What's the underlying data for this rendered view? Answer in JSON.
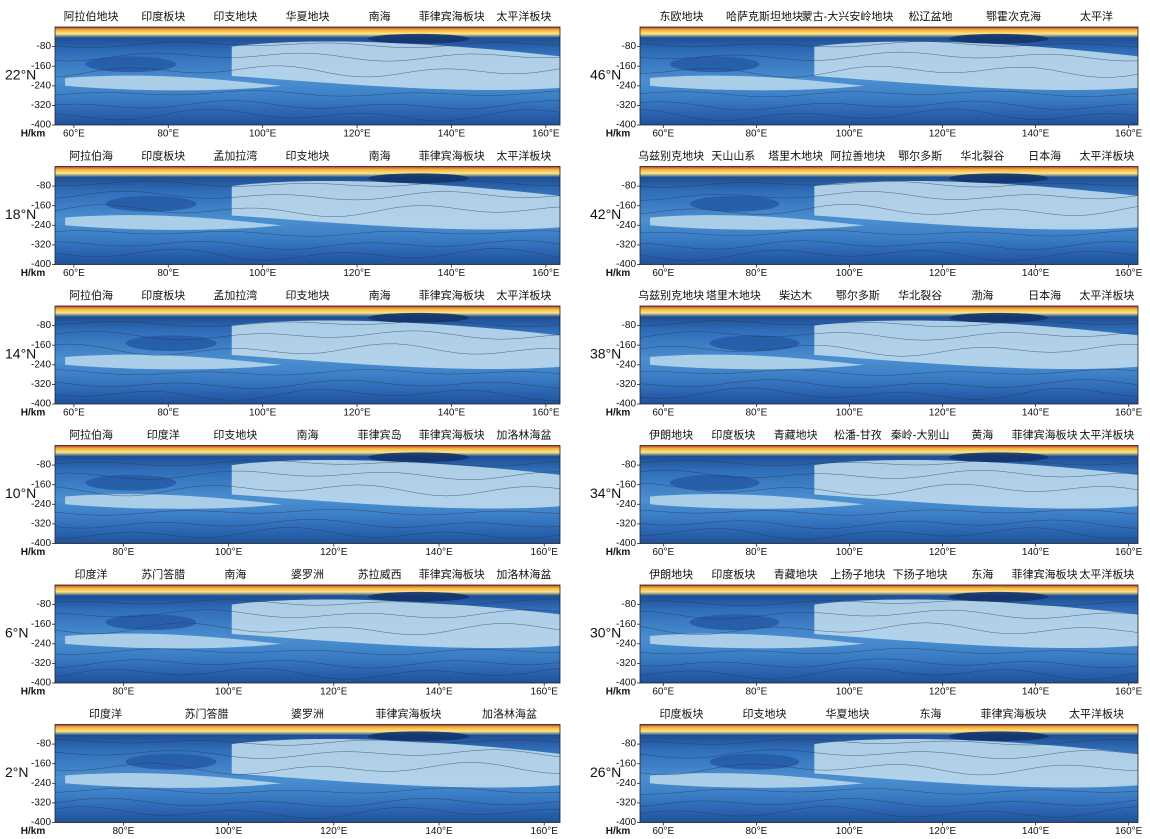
{
  "chart_data": [
    {
      "type": "contour",
      "title": "22°N",
      "ylabel": "H/km",
      "annotations": [
        "阿拉伯地块",
        "印度板块",
        "印支地块",
        "华夏地块",
        "南海",
        "菲律宾海板块",
        "太平洋板块"
      ],
      "xlim": [
        56,
        163
      ],
      "xticks": [
        {
          "value": 60,
          "label": "60°E"
        },
        {
          "value": 80,
          "label": "80°E"
        },
        {
          "value": 100,
          "label": "100°E"
        },
        {
          "value": 120,
          "label": "120°E"
        },
        {
          "value": 140,
          "label": "140°E"
        },
        {
          "value": 160,
          "label": "160°E"
        }
      ],
      "ylim": [
        -400,
        0
      ],
      "yticks": [
        -80,
        -160,
        -240,
        -320,
        -400
      ]
    },
    {
      "type": "contour",
      "title": "18°N",
      "ylabel": "H/km",
      "annotations": [
        "阿拉伯海",
        "印度板块",
        "孟加拉湾",
        "印支地块",
        "南海",
        "菲律宾海板块",
        "太平洋板块"
      ],
      "xlim": [
        56,
        163
      ],
      "xticks": [
        {
          "value": 60,
          "label": "60°E"
        },
        {
          "value": 80,
          "label": "80°E"
        },
        {
          "value": 100,
          "label": "100°E"
        },
        {
          "value": 120,
          "label": "120°E"
        },
        {
          "value": 140,
          "label": "140°E"
        },
        {
          "value": 160,
          "label": "160°E"
        }
      ],
      "ylim": [
        -400,
        0
      ],
      "yticks": [
        -80,
        -160,
        -240,
        -320,
        -400
      ]
    },
    {
      "type": "contour",
      "title": "14°N",
      "ylabel": "H/km",
      "annotations": [
        "阿拉伯海",
        "印度板块",
        "孟加拉湾",
        "印支地块",
        "南海",
        "菲律宾海板块",
        "太平洋板块"
      ],
      "xlim": [
        56,
        163
      ],
      "xticks": [
        {
          "value": 60,
          "label": "60°E"
        },
        {
          "value": 80,
          "label": "80°E"
        },
        {
          "value": 100,
          "label": "100°E"
        },
        {
          "value": 120,
          "label": "120°E"
        },
        {
          "value": 140,
          "label": "140°E"
        },
        {
          "value": 160,
          "label": "160°E"
        }
      ],
      "ylim": [
        -400,
        0
      ],
      "yticks": [
        -80,
        -160,
        -240,
        -320,
        -400
      ]
    },
    {
      "type": "contour",
      "title": "10°N",
      "ylabel": "H/km",
      "annotations": [
        "阿拉伯海",
        "印度洋",
        "印支地块",
        "南海",
        "菲律宾岛",
        "菲律宾海板块",
        "加洛林海盆"
      ],
      "xlim": [
        67,
        163
      ],
      "xticks": [
        {
          "value": 80,
          "label": "80°E"
        },
        {
          "value": 100,
          "label": "100°E"
        },
        {
          "value": 120,
          "label": "120°E"
        },
        {
          "value": 140,
          "label": "140°E"
        },
        {
          "value": 160,
          "label": "160°E"
        }
      ],
      "ylim": [
        -400,
        0
      ],
      "yticks": [
        -80,
        -160,
        -240,
        -320,
        -400
      ]
    },
    {
      "type": "contour",
      "title": "6°N",
      "ylabel": "H/km",
      "annotations": [
        "印度洋",
        "苏门答腊",
        "南海",
        "婆罗洲",
        "苏拉威西",
        "菲律宾海板块",
        "加洛林海盆"
      ],
      "xlim": [
        67,
        163
      ],
      "xticks": [
        {
          "value": 80,
          "label": "80°E"
        },
        {
          "value": 100,
          "label": "100°E"
        },
        {
          "value": 120,
          "label": "120°E"
        },
        {
          "value": 140,
          "label": "140°E"
        },
        {
          "value": 160,
          "label": "160°E"
        }
      ],
      "ylim": [
        -400,
        0
      ],
      "yticks": [
        -80,
        -160,
        -240,
        -320,
        -400
      ]
    },
    {
      "type": "contour",
      "title": "2°N",
      "ylabel": "H/km",
      "annotations": [
        "印度洋",
        "苏门答腊",
        "婆罗洲",
        "菲律宾海板块",
        "加洛林海盆"
      ],
      "xlim": [
        67,
        163
      ],
      "xticks": [
        {
          "value": 80,
          "label": "80°E"
        },
        {
          "value": 100,
          "label": "100°E"
        },
        {
          "value": 120,
          "label": "120°E"
        },
        {
          "value": 140,
          "label": "140°E"
        },
        {
          "value": 160,
          "label": "160°E"
        }
      ],
      "ylim": [
        -400,
        0
      ],
      "yticks": [
        -80,
        -160,
        -240,
        -320,
        -400
      ]
    },
    {
      "type": "contour",
      "title": "46°N",
      "ylabel": "H/km",
      "annotations": [
        "东欧地块",
        "哈萨克斯坦地块",
        "蒙古-大兴安岭地块",
        "松辽盆地",
        "鄂霍次克海",
        "太平洋"
      ],
      "xlim": [
        55,
        162
      ],
      "xticks": [
        {
          "value": 60,
          "label": "60°E"
        },
        {
          "value": 80,
          "label": "80°E"
        },
        {
          "value": 100,
          "label": "100°E"
        },
        {
          "value": 120,
          "label": "120°E"
        },
        {
          "value": 140,
          "label": "140°E"
        },
        {
          "value": 160,
          "label": "160°E"
        }
      ],
      "ylim": [
        -400,
        0
      ],
      "yticks": [
        -80,
        -160,
        -240,
        -320,
        -400
      ]
    },
    {
      "type": "contour",
      "title": "42°N",
      "ylabel": "H/km",
      "annotations": [
        "乌兹别克地块",
        "天山山系",
        "塔里木地块",
        "阿拉善地块",
        "鄂尔多斯",
        "华北裂谷",
        "日本海",
        "太平洋板块"
      ],
      "xlim": [
        55,
        162
      ],
      "xticks": [
        {
          "value": 60,
          "label": "60°E"
        },
        {
          "value": 80,
          "label": "80°E"
        },
        {
          "value": 100,
          "label": "100°E"
        },
        {
          "value": 120,
          "label": "120°E"
        },
        {
          "value": 140,
          "label": "140°E"
        },
        {
          "value": 160,
          "label": "160°E"
        }
      ],
      "ylim": [
        -400,
        0
      ],
      "yticks": [
        -80,
        -160,
        -240,
        -320,
        -400
      ]
    },
    {
      "type": "contour",
      "title": "38°N",
      "ylabel": "H/km",
      "annotations": [
        "乌兹别克地块",
        "塔里木地块",
        "柴达木",
        "鄂尔多斯",
        "华北裂谷",
        "渤海",
        "日本海",
        "太平洋板块"
      ],
      "xlim": [
        55,
        162
      ],
      "xticks": [
        {
          "value": 60,
          "label": "60°E"
        },
        {
          "value": 80,
          "label": "80°E"
        },
        {
          "value": 100,
          "label": "100°E"
        },
        {
          "value": 120,
          "label": "120°E"
        },
        {
          "value": 140,
          "label": "140°E"
        },
        {
          "value": 160,
          "label": "160°E"
        }
      ],
      "ylim": [
        -400,
        0
      ],
      "yticks": [
        -80,
        -160,
        -240,
        -320,
        -400
      ]
    },
    {
      "type": "contour",
      "title": "34°N",
      "ylabel": "H/km",
      "annotations": [
        "伊朗地块",
        "印度板块",
        "青藏地块",
        "松潘-甘孜",
        "秦岭-大别山",
        "黄海",
        "菲律宾海板块",
        "太平洋板块"
      ],
      "xlim": [
        55,
        162
      ],
      "xticks": [
        {
          "value": 60,
          "label": "60°E"
        },
        {
          "value": 80,
          "label": "80°E"
        },
        {
          "value": 100,
          "label": "100°E"
        },
        {
          "value": 120,
          "label": "120°E"
        },
        {
          "value": 140,
          "label": "140°E"
        },
        {
          "value": 160,
          "label": "160°E"
        }
      ],
      "ylim": [
        -400,
        0
      ],
      "yticks": [
        -80,
        -160,
        -240,
        -320,
        -400
      ]
    },
    {
      "type": "contour",
      "title": "30°N",
      "ylabel": "H/km",
      "annotations": [
        "伊朗地块",
        "印度板块",
        "青藏地块",
        "上扬子地块",
        "下扬子地块",
        "东海",
        "菲律宾海板块",
        "太平洋板块"
      ],
      "xlim": [
        55,
        162
      ],
      "xticks": [
        {
          "value": 60,
          "label": "60°E"
        },
        {
          "value": 80,
          "label": "80°E"
        },
        {
          "value": 100,
          "label": "100°E"
        },
        {
          "value": 120,
          "label": "120°E"
        },
        {
          "value": 140,
          "label": "140°E"
        },
        {
          "value": 160,
          "label": "160°E"
        }
      ],
      "ylim": [
        -400,
        0
      ],
      "yticks": [
        -80,
        -160,
        -240,
        -320,
        -400
      ]
    },
    {
      "type": "contour",
      "title": "26°N",
      "ylabel": "H/km",
      "annotations": [
        "印度板块",
        "印支地块",
        "华夏地块",
        "东海",
        "菲律宾海板块",
        "太平洋板块"
      ],
      "xlim": [
        55,
        162
      ],
      "xticks": [
        {
          "value": 60,
          "label": "60°E"
        },
        {
          "value": 80,
          "label": "80°E"
        },
        {
          "value": 100,
          "label": "100°E"
        },
        {
          "value": 120,
          "label": "120°E"
        },
        {
          "value": 140,
          "label": "140°E"
        },
        {
          "value": 160,
          "label": "160°E"
        }
      ],
      "ylim": [
        -400,
        0
      ],
      "yticks": [
        -80,
        -160,
        -240,
        -320,
        -400
      ]
    }
  ]
}
